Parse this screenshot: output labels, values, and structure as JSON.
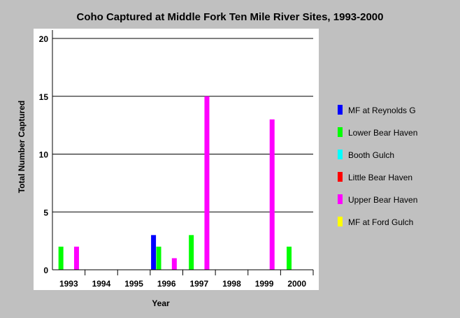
{
  "chart_data": {
    "type": "bar",
    "title": "Coho Captured at Middle Fork Ten Mile River Sites, 1993-2000",
    "xlabel": "Year",
    "ylabel": "Total Number Captured",
    "ylim": [
      0,
      20
    ],
    "yticks": [
      "0",
      "5",
      "10",
      "15",
      "20"
    ],
    "grid": true,
    "legend_position": "right",
    "categories": [
      "1993",
      "1994",
      "1995",
      "1996",
      "1997",
      "1998",
      "1999",
      "2000"
    ],
    "series": [
      {
        "name": "MF at Reynolds G",
        "color": "#0000ff",
        "values": [
          0,
          0,
          0,
          3,
          0,
          0,
          0,
          0
        ]
      },
      {
        "name": "Lower Bear Haven",
        "color": "#00ff00",
        "values": [
          2,
          0,
          0,
          2,
          3,
          0,
          0,
          2
        ]
      },
      {
        "name": "Booth Gulch",
        "color": "#00ffff",
        "values": [
          0,
          0,
          0,
          0,
          0,
          0,
          0,
          0
        ]
      },
      {
        "name": "Little Bear Haven",
        "color": "#ff0000",
        "values": [
          0,
          0,
          0,
          0,
          0,
          0,
          0,
          0
        ]
      },
      {
        "name": "Upper Bear Haven",
        "color": "#ff00ff",
        "values": [
          2,
          0,
          0,
          1,
          15,
          0,
          13,
          0
        ]
      },
      {
        "name": "MF at Ford Gulch",
        "color": "#ffff00",
        "values": [
          0,
          0,
          0,
          0,
          0,
          0,
          0,
          0
        ]
      }
    ]
  }
}
